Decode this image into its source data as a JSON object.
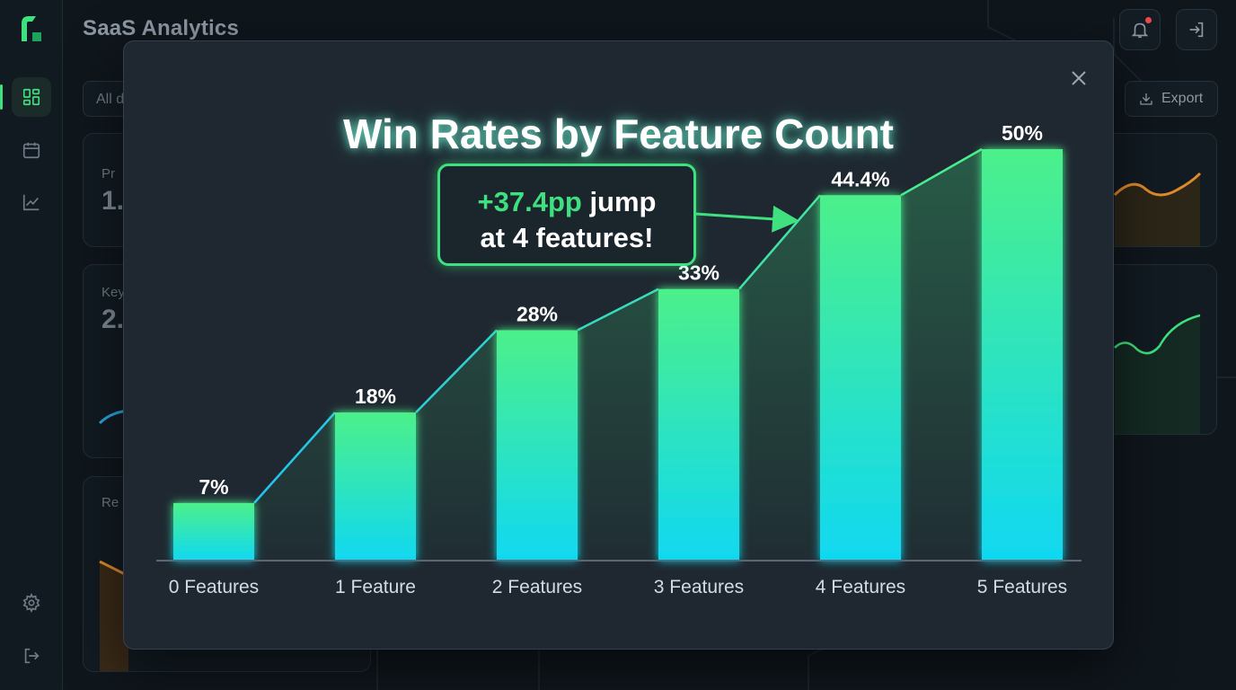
{
  "app": {
    "title": "SaaS Analytics"
  },
  "header": {
    "notifications_icon": "bell-icon",
    "logout_icon": "logout-icon"
  },
  "sidebar": {
    "items": [
      {
        "icon": "dashboard-grid-icon",
        "active": true
      },
      {
        "icon": "calendar-icon",
        "active": false
      },
      {
        "icon": "trend-chart-icon",
        "active": false
      },
      {
        "icon": "gear-icon",
        "active": false
      },
      {
        "icon": "logout-icon",
        "active": false
      }
    ]
  },
  "toolbar": {
    "filter_value": "All d",
    "export_label": "Export"
  },
  "cards": [
    {
      "label": "Pr",
      "value": "1."
    },
    {
      "label": "Key",
      "value": "2."
    },
    {
      "label": "Re",
      "value": ""
    }
  ],
  "modal": {
    "title": "Win Rates by Feature Count",
    "callout": {
      "highlight": "+37.4pp",
      "text_1": "jump",
      "text_2": "at 4 features!"
    }
  },
  "colors": {
    "accent": "#3ee07f",
    "bar_top": "#4cf08a",
    "bar_bottom": "#10d8f2",
    "danger": "#e94b4b"
  },
  "chart_data": {
    "type": "bar",
    "categories": [
      "0 Features",
      "1 Feature",
      "2 Features",
      "3 Features",
      "4 Features",
      "5 Features"
    ],
    "values": [
      7,
      18,
      28,
      33,
      44.4,
      50
    ],
    "value_labels": [
      "7%",
      "18%",
      "28%",
      "33%",
      "44.4%",
      "50%"
    ],
    "title": "Win Rates by Feature Count",
    "ylim": [
      0,
      50
    ],
    "grid": false,
    "annotation": "+37.4pp jump at 4 features!"
  }
}
